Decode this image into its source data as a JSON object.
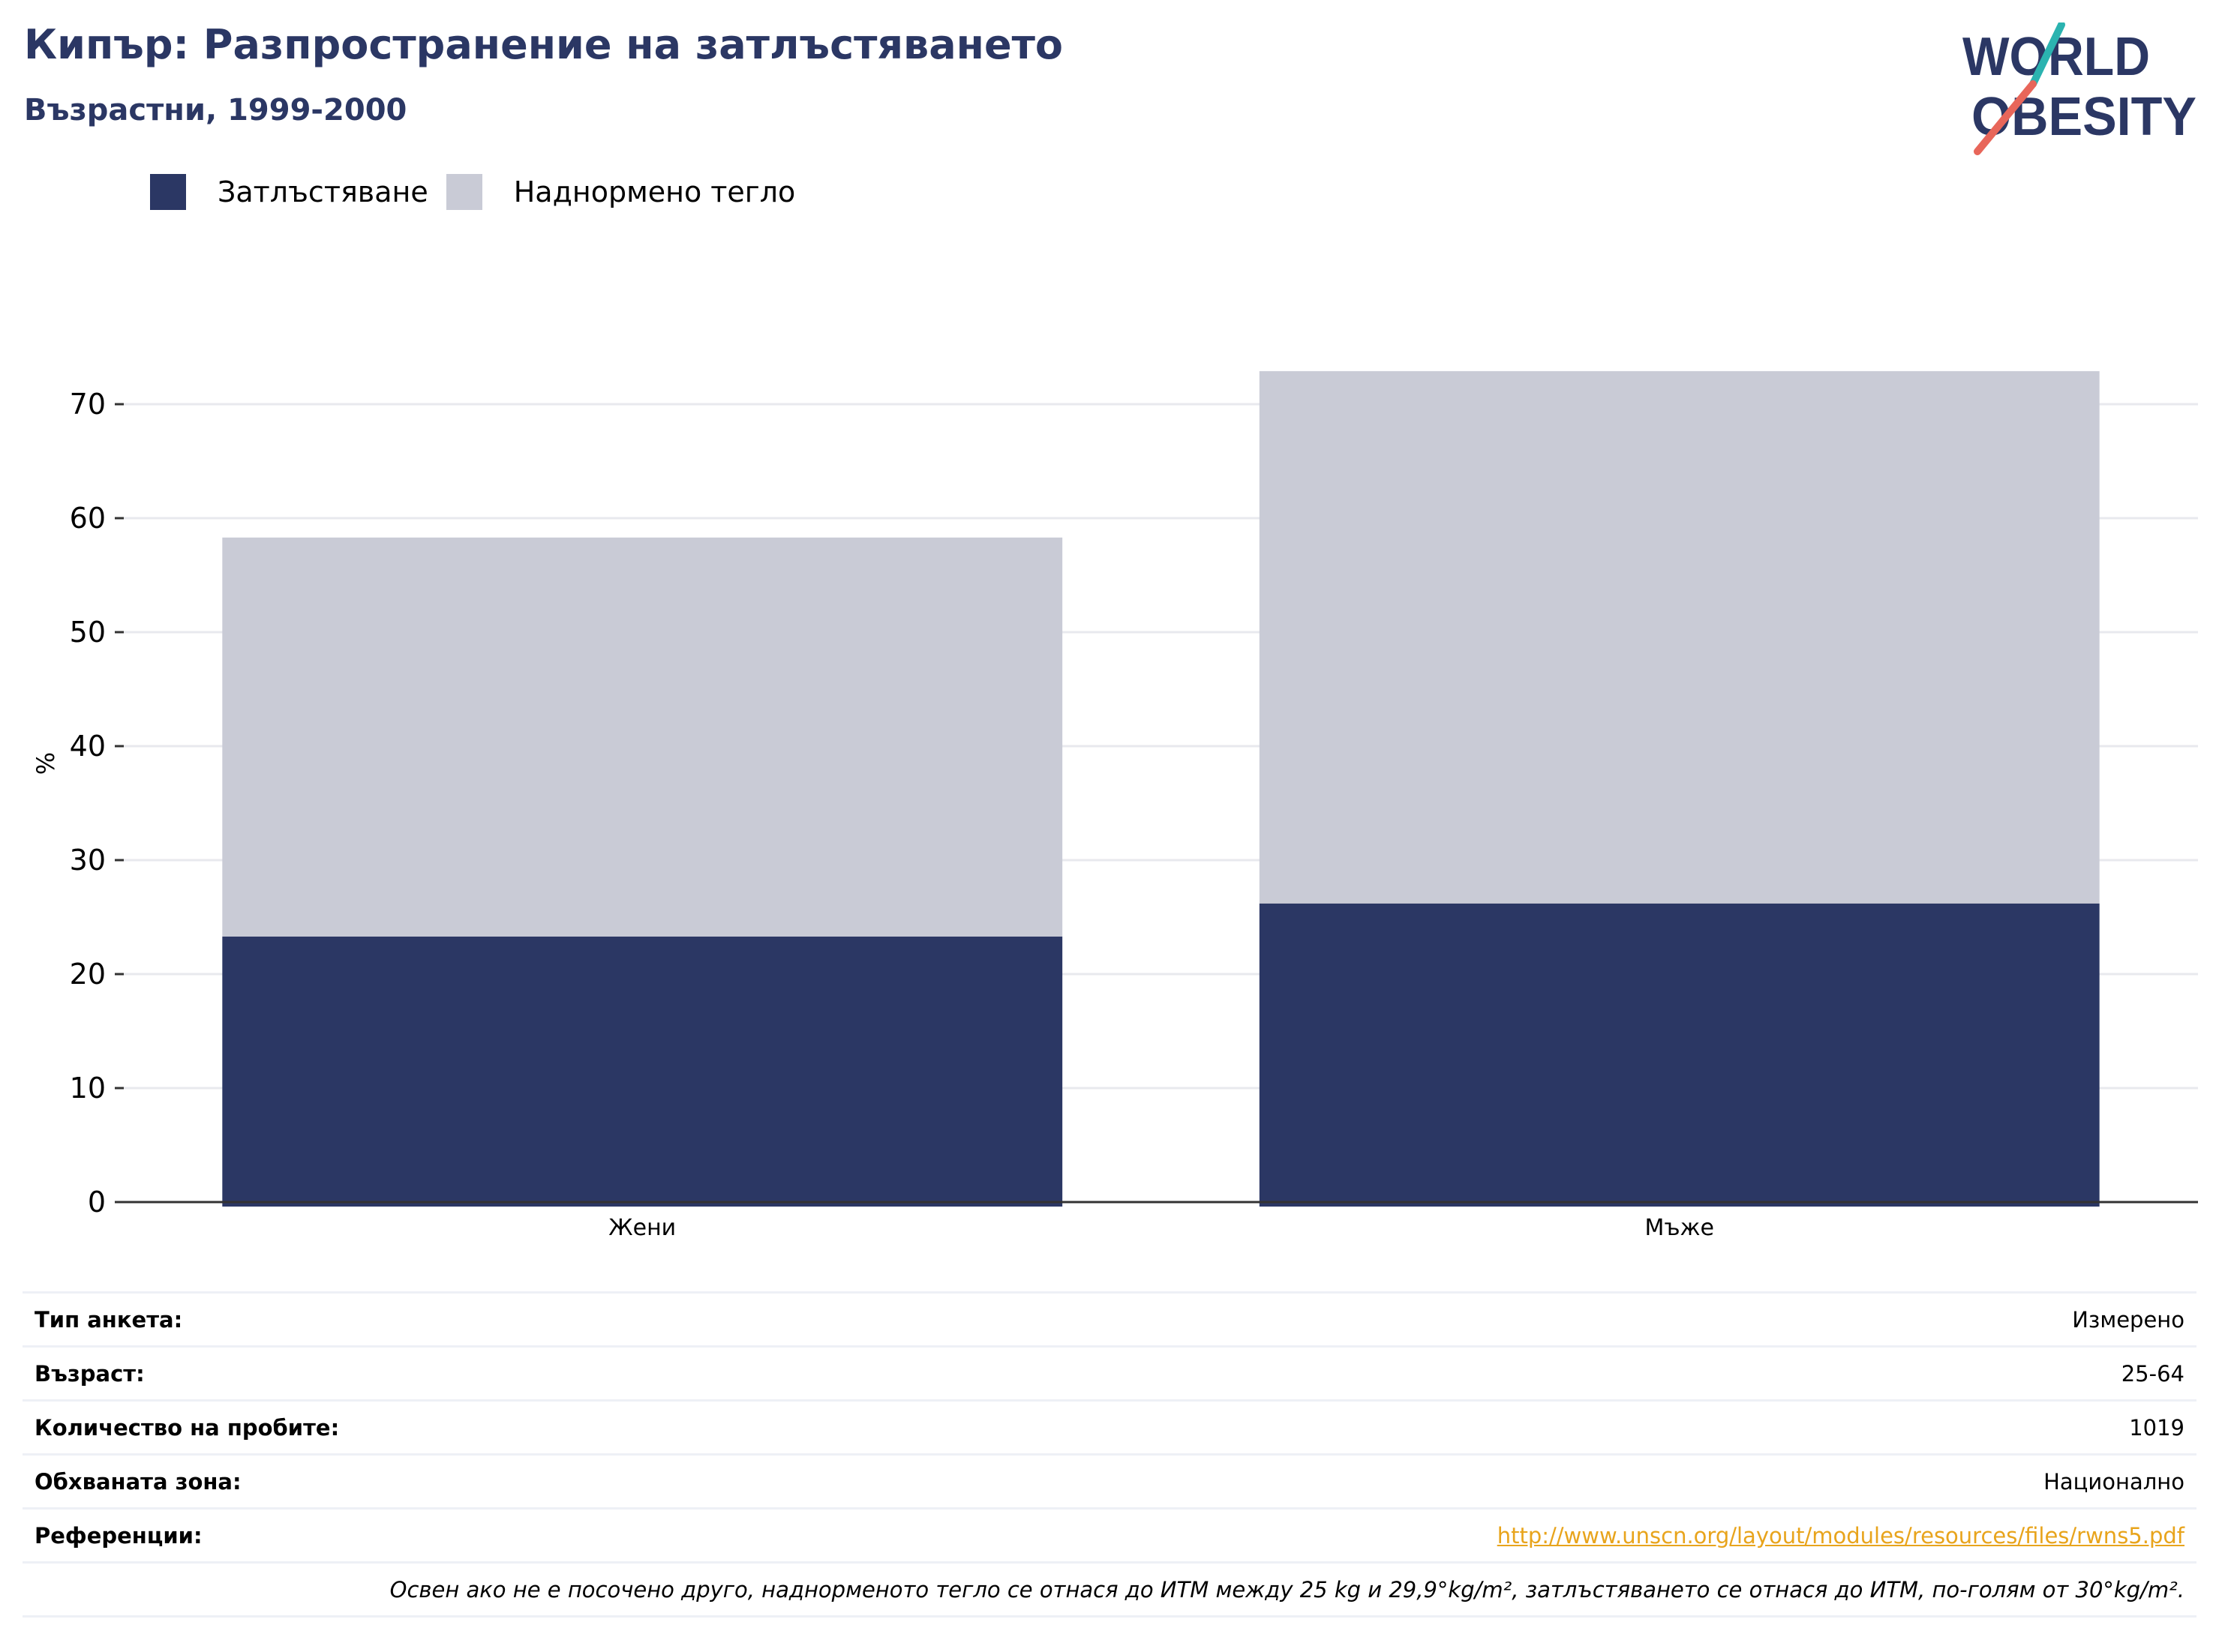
{
  "header": {
    "title": "Кипър: Разпространение на затлъстяването",
    "subtitle": "Възрастни, 1999-2000"
  },
  "logo": {
    "line1": "WORLD",
    "line2": "OBESITY",
    "colors": {
      "text": "#2b3764",
      "accent_top": "#2bb3b0",
      "accent_bottom": "#e8665a"
    }
  },
  "legend": [
    {
      "label": "Затлъстяване",
      "color": "#2b3764"
    },
    {
      "label": "Наднормено тегло",
      "color": "#c9cbd6"
    }
  ],
  "chart_data": {
    "type": "bar",
    "stacked": true,
    "categories": [
      "Жени",
      "Мъже"
    ],
    "series": [
      {
        "name": "Затлъстяване",
        "values": [
          23.3,
          26.2
        ],
        "color": "#2b3764"
      },
      {
        "name": "Наднормено тегло",
        "values": [
          35.0,
          46.7
        ],
        "color": "#c9cbd6"
      }
    ],
    "xlabel": "",
    "ylabel": "%",
    "ylim": [
      0,
      75
    ],
    "yticks": [
      0,
      10,
      20,
      30,
      40,
      50,
      60,
      70
    ],
    "grid": true,
    "legend_position": "top-left"
  },
  "meta": {
    "rows": [
      {
        "label": "Тип анкета:",
        "value": "Измерено"
      },
      {
        "label": "Възраст:",
        "value": "25-64"
      },
      {
        "label": "Количество на пробите:",
        "value": "1019"
      },
      {
        "label": "Обхваната зона:",
        "value": "Национално"
      },
      {
        "label": "Референции:",
        "value": "http://www.unscn.org/layout/modules/resources/files/rwns5.pdf",
        "link": true
      }
    ],
    "note": "Освен ако не е посочено друго, наднорменото тегло се отнася до ИТМ между 25 kg и 29,9°kg/m², затлъстяването се отнася до ИТМ, по-голям от 30°kg/m²."
  }
}
